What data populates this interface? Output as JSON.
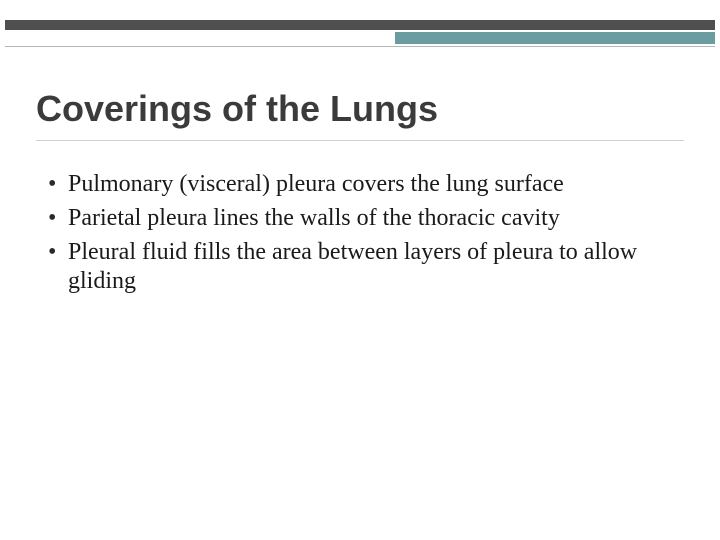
{
  "slide": {
    "title": "Coverings of the Lungs",
    "title_fontsize": 36,
    "title_color": "#3b3b3b",
    "title_font": "Trebuchet MS",
    "body_fontsize": 24,
    "body_color": "#1a1a1a",
    "body_font": "Georgia",
    "line_height": 1.24,
    "bullets": [
      "Pulmonary (visceral) pleura covers the lung surface",
      "Parietal pleura lines the walls of the thoracic cavity",
      "Pleural fluid fills the area between layers of pleura to allow gliding"
    ],
    "decoration": {
      "dark_strip_color": "#4f4f4f",
      "teal_strip_color": "#6a9ca0",
      "rule_color": "#cfcfcf",
      "background_color": "#ffffff"
    }
  }
}
